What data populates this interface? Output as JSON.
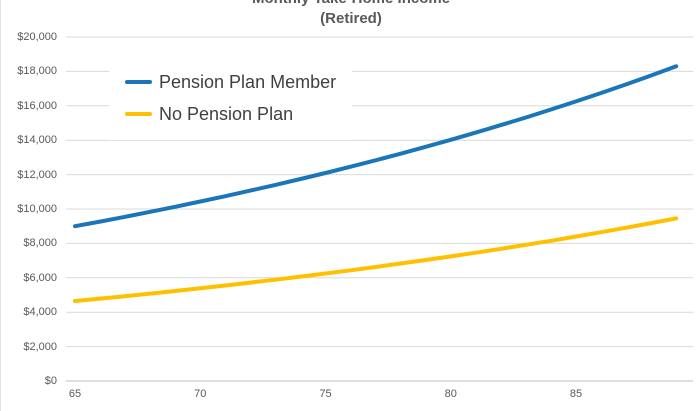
{
  "chart_data": {
    "type": "line",
    "title": "Monthly Take-Home Income",
    "subtitle": "(Retired)",
    "xlabel": "",
    "ylabel": "",
    "x_label_unit": "age",
    "x": [
      65,
      66,
      67,
      68,
      69,
      70,
      71,
      72,
      73,
      74,
      75,
      76,
      77,
      78,
      79,
      80,
      81,
      82,
      83,
      84,
      85,
      86,
      87,
      88,
      89
    ],
    "x_ticks": [
      "65",
      "70",
      "75",
      "80",
      "85"
    ],
    "y_ticks": [
      "$0",
      "$2,000",
      "$4,000",
      "$6,000",
      "$8,000",
      "$10,000",
      "$12,000",
      "$14,000",
      "$16,000",
      "$18,000",
      "$20,000"
    ],
    "ylim": [
      0,
      20000
    ],
    "grid": "horizontal",
    "legend_position": "top-left-inside",
    "series": [
      {
        "name": "Pension Plan Member",
        "color": "#1A76B8",
        "values": [
          9000,
          9270,
          9548,
          9835,
          10130,
          10434,
          10747,
          11069,
          11401,
          11743,
          12095,
          12458,
          12832,
          13217,
          13614,
          14022,
          14443,
          14876,
          15322,
          15782,
          16255,
          16743,
          17245,
          17762,
          18295
        ]
      },
      {
        "name": "No Pension Plan",
        "color": "#FFC000",
        "values": [
          4650,
          4790,
          4933,
          5081,
          5234,
          5391,
          5552,
          5719,
          5891,
          6067,
          6249,
          6437,
          6630,
          6829,
          7034,
          7245,
          7462,
          7686,
          7917,
          8154,
          8399,
          8651,
          8910,
          9178,
          9453
        ]
      }
    ],
    "colors": {
      "title_text": "#595959",
      "tick_text": "#595959",
      "legend_text": "#404040",
      "gridline": "#D9D9D9",
      "axis_line": "#BFBFBF"
    }
  }
}
